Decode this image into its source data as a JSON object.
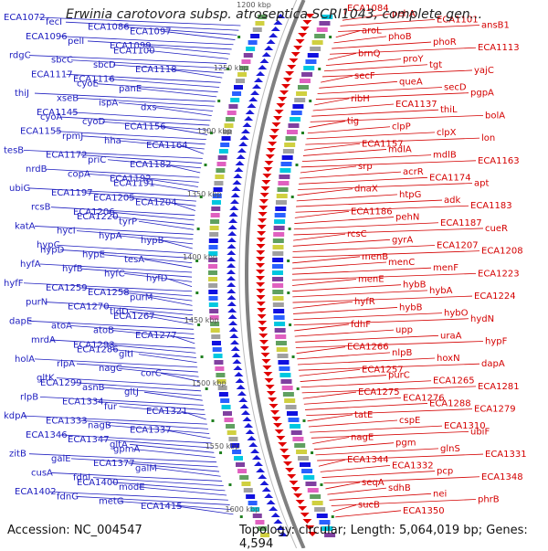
{
  "title": "Erwinia carotovora subsp. atroseptica SCRI1043, complete gen...",
  "footer": {
    "accession": "Accession: NC_004547",
    "summary": "Topology: circular; Length: 5,064,019 bp; Genes: 4,594"
  },
  "scale": [
    "1200 kbp",
    "1250 kbp",
    "1300 kbp",
    "1350 kbp",
    "1400 kbp",
    "1450 kbp",
    "1500 kbp",
    "1550 kbp",
    "1600 kbp"
  ],
  "colors": {
    "left_strand": "#2020c0",
    "right_strand": "#d40000",
    "axis": "#808080"
  },
  "left_labels": [
    "ECA1072",
    "fecI",
    "ECA1086",
    "ECA1097",
    "ECA1096",
    "pelI",
    "ECA1099",
    "ECA1100",
    "rdgC",
    "sbcC",
    "sbcD",
    "ECA1118",
    "ECA1117",
    "ECA1116",
    "cyoE",
    "panE",
    "thiJ",
    "xseB",
    "ispA",
    "dxs",
    "ECA1145",
    "cyoA",
    "cyoD",
    "ECA1156",
    "ECA1155",
    "rpmJ",
    "hha",
    "ECA1164",
    "tesB",
    "ECA1172",
    "priC",
    "ECA1182",
    "nrdB",
    "copA",
    "ECA1192",
    "ECA1191",
    "ubiG",
    "ECA1197",
    "ECA1205",
    "ECA1204",
    "rcsB",
    "ECA1206",
    "ECA1220",
    "tyrP",
    "katA",
    "hycI",
    "hypA",
    "hypB",
    "hypC",
    "hypD",
    "hypE",
    "tesA",
    "hyfA",
    "hyfB",
    "hyfC",
    "hyfD",
    "hyfF",
    "ECA1259",
    "ECA1258",
    "purM",
    "purN",
    "ECA1270",
    "tldD",
    "ECA1267",
    "dapE",
    "atoA",
    "atoB",
    "ECA1277",
    "mrdA",
    "ECA1293",
    "ECA1286",
    "gltI",
    "holA",
    "rlpA",
    "nagC",
    "corC",
    "gltK",
    "ECA1299",
    "asnB",
    "gltJ",
    "rlpB",
    "ECA1334",
    "fur",
    "ECA1321",
    "kdpA",
    "ECA1333",
    "nagB",
    "ECA1337",
    "ECA1346",
    "ECA1347",
    "gltA",
    "gpmA",
    "zitB",
    "galE",
    "ECA1377",
    "galM",
    "cusA",
    "fdnI",
    "ECA1400",
    "modE",
    "ECA1402",
    "fdnG",
    "metG",
    "ECA1415"
  ],
  "right_labels": [
    "ECA1084",
    "pehA",
    "ECA1101",
    "ansB1",
    "aroL",
    "phoB",
    "phoR",
    "ECA1113",
    "brnQ",
    "proY",
    "tgt",
    "yajC",
    "secF",
    "queA",
    "secD",
    "pgpA",
    "ribH",
    "ECA1137",
    "thiL",
    "bolA",
    "tig",
    "clpP",
    "clpX",
    "lon",
    "ECA1157",
    "mdlA",
    "mdlB",
    "ECA1163",
    "srp",
    "acrR",
    "ECA1174",
    "apt",
    "dnaX",
    "htpG",
    "adk",
    "ECA1183",
    "ECA1186",
    "pehN",
    "ECA1187",
    "cueR",
    "rcsC",
    "gyrA",
    "ECA1207",
    "ECA1208",
    "menB",
    "menC",
    "menF",
    "ECA1223",
    "menE",
    "hybB",
    "hybA",
    "ECA1224",
    "hyfR",
    "hybB",
    "hybO",
    "hydN",
    "fdhF",
    "upp",
    "uraA",
    "hypF",
    "ECA1266",
    "nlpB",
    "hoxN",
    "dapA",
    "ECA1257",
    "purC",
    "ECA1265",
    "ECA1281",
    "ECA1275",
    "ECA1276",
    "ECA1288",
    "ECA1279",
    "tatE",
    "cspE",
    "ECA1310",
    "ubiF",
    "nagE",
    "pgm",
    "glnS",
    "ECA1331",
    "ECA1344",
    "ECA1332",
    "pcp",
    "ECA1348",
    "seqA",
    "sdhB",
    "nei",
    "phrB",
    "sucB",
    "ECA1350"
  ]
}
